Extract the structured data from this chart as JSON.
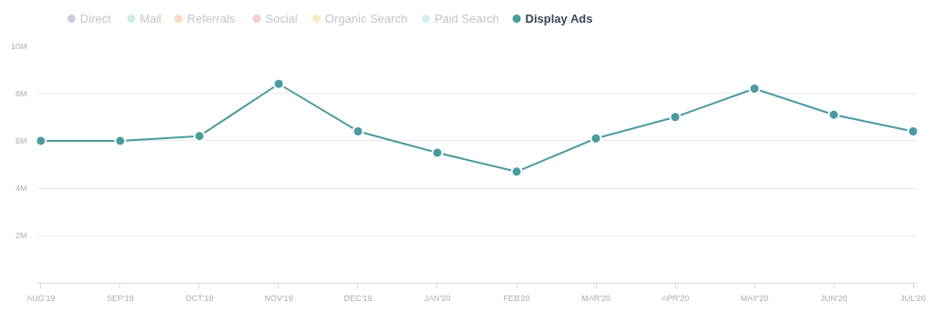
{
  "chart_data": {
    "type": "line",
    "categories": [
      "AUG'19",
      "SEP'19",
      "OCT'19",
      "NOV'19",
      "DEC'19",
      "JAN'20",
      "FEB'20",
      "MAR'20",
      "APR'20",
      "MAY'20",
      "JUN'20",
      "JUL'20"
    ],
    "series": [
      {
        "name": "Direct",
        "color": "#c8cdd9",
        "values": [
          null,
          null,
          null,
          null,
          null,
          null,
          null,
          null,
          null,
          null,
          null,
          null
        ]
      },
      {
        "name": "Mail",
        "color": "#cdeceb",
        "values": [
          null,
          null,
          null,
          null,
          null,
          null,
          null,
          null,
          null,
          null,
          null,
          null
        ]
      },
      {
        "name": "Referrals",
        "color": "#fbd9c4",
        "values": [
          null,
          null,
          null,
          null,
          null,
          null,
          null,
          null,
          null,
          null,
          null,
          null
        ]
      },
      {
        "name": "Social",
        "color": "#f5cccc",
        "values": [
          null,
          null,
          null,
          null,
          null,
          null,
          null,
          null,
          null,
          null,
          null,
          null
        ]
      },
      {
        "name": "Organic Search",
        "color": "#fbecc6",
        "values": [
          null,
          null,
          null,
          null,
          null,
          null,
          null,
          null,
          null,
          null,
          null,
          null
        ]
      },
      {
        "name": "Paid Search",
        "color": "#d6eff3",
        "values": [
          null,
          null,
          null,
          null,
          null,
          null,
          null,
          null,
          null,
          null,
          null,
          null
        ]
      },
      {
        "name": "Display Ads",
        "color": "#4a9a9e",
        "values": [
          6.0,
          6.0,
          6.2,
          8.4,
          6.4,
          5.5,
          4.7,
          6.1,
          7.0,
          8.2,
          7.1,
          6.4
        ]
      }
    ],
    "ylim": [
      0,
      10
    ],
    "yticks": [
      {
        "value": 2,
        "label": "2M"
      },
      {
        "value": 4,
        "label": "4M"
      },
      {
        "value": 6,
        "label": "6M"
      },
      {
        "value": 8,
        "label": "8M"
      },
      {
        "value": 10,
        "label": "10M"
      }
    ],
    "grid": "y",
    "legend": "top left",
    "marker": "circle",
    "line_style": "solid"
  }
}
